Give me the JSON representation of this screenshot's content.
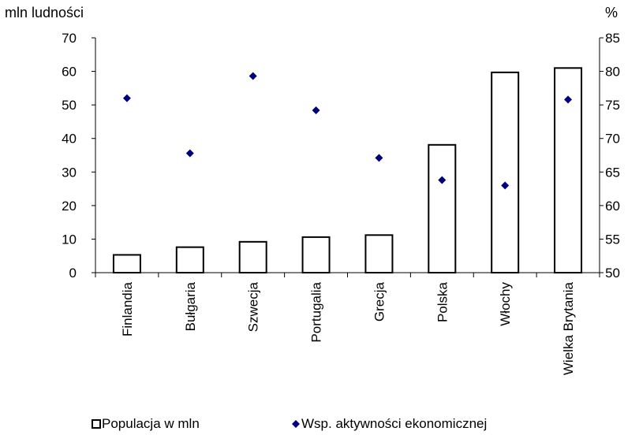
{
  "chart_data": {
    "type": "bar",
    "categories": [
      "Finlandia",
      "Bułgaria",
      "Szwecja",
      "Portugalia",
      "Grecja",
      "Polska",
      "Włochy",
      "Wielka Brytania"
    ],
    "series": [
      {
        "name": "Populacja w mln",
        "type": "bar",
        "axis": "left",
        "values": [
          5.3,
          7.6,
          9.2,
          10.6,
          11.2,
          38.1,
          59.7,
          61.0
        ]
      },
      {
        "name": "Wsp. aktywności ekonomicznej",
        "type": "scatter",
        "axis": "right",
        "values": [
          76.0,
          67.8,
          79.3,
          74.2,
          67.1,
          63.8,
          63.0,
          75.8
        ]
      }
    ],
    "ylabel_left": "mln ludności",
    "ylabel_right": "%",
    "ylim_left": [
      0,
      70
    ],
    "yticks_left": [
      0,
      10,
      20,
      30,
      40,
      50,
      60,
      70
    ],
    "ylim_right": [
      50,
      85
    ],
    "yticks_right": [
      50,
      55,
      60,
      65,
      70,
      75,
      80,
      85
    ],
    "grid": false,
    "legend_position": "bottom",
    "colors": {
      "bar_fill": "#ffffff",
      "bar_stroke": "#000000",
      "marker": "#000080"
    }
  }
}
